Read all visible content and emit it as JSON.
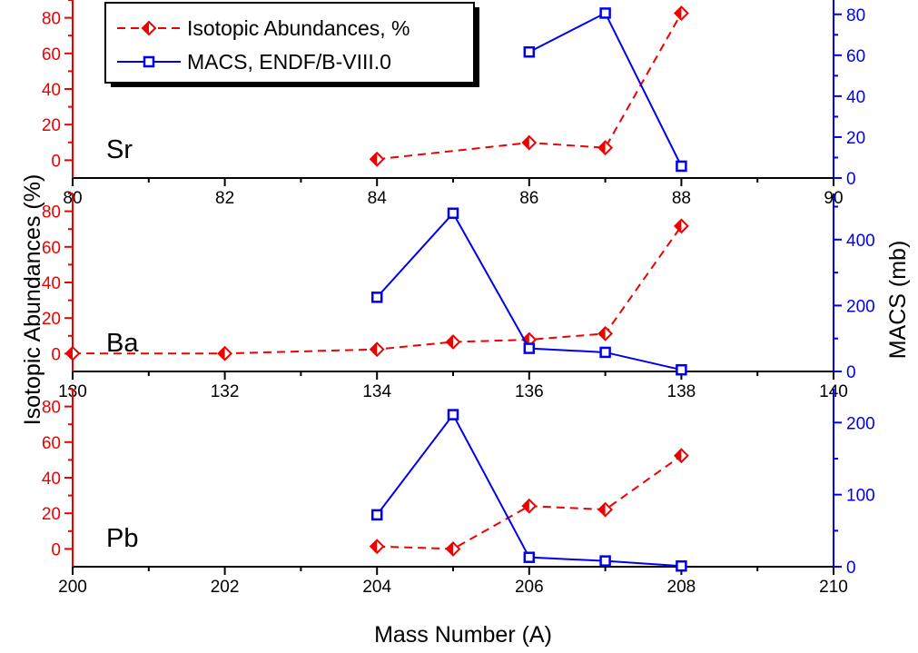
{
  "chart_data": {
    "type": "line",
    "ylabel_left": "Isotopic Abundances  (%)",
    "ylabel_right": "MACS (mb)",
    "xlabel": "Mass Number (A)",
    "legend": {
      "placement": "top-left",
      "entries": [
        "Isotopic Abundances, %",
        "MACS, ENDF/B-VIII.0"
      ]
    },
    "colors": {
      "abundance": "#ee0000",
      "macs": "#0000ee",
      "frame": "#000000"
    },
    "panels": [
      {
        "element": "Sr",
        "xlim": [
          80,
          90
        ],
        "x_ticks": [
          "80",
          "82",
          "84",
          "86",
          "88",
          "90"
        ],
        "ylim_left": [
          -10,
          90
        ],
        "y_ticks_left": [
          "0",
          "20",
          "40",
          "60",
          "80"
        ],
        "ylim_right": [
          0,
          87
        ],
        "y_ticks_right": [
          "0",
          "20",
          "40",
          "60",
          "80"
        ],
        "series": [
          {
            "name": "Isotopic Abundances, %",
            "x": [
              84,
              86,
              87,
              88
            ],
            "y": [
              0.56,
              9.86,
              7.0,
              82.58
            ]
          },
          {
            "name": "MACS, ENDF/B-VIII.0",
            "x": [
              86,
              87,
              88
            ],
            "y": [
              61.6,
              80.6,
              5.8
            ]
          }
        ]
      },
      {
        "element": "Ba",
        "xlim": [
          130,
          140
        ],
        "x_ticks": [
          "130",
          "132",
          "134",
          "136",
          "138",
          "140"
        ],
        "ylim_left": [
          -10,
          90
        ],
        "y_ticks_left": [
          "0",
          "20",
          "40",
          "60",
          "80"
        ],
        "ylim_right": [
          0,
          540
        ],
        "y_ticks_right": [
          "0",
          "200",
          "400"
        ],
        "series": [
          {
            "name": "Isotopic Abundances, %",
            "x": [
              130,
              132,
              134,
              135,
              136,
              137,
              138
            ],
            "y": [
              0.11,
              0.1,
              2.42,
              6.59,
              7.85,
              11.23,
              71.7
            ]
          },
          {
            "name": "MACS, ENDF/B-VIII.0",
            "x": [
              134,
              135,
              136,
              137,
              138
            ],
            "y": [
              225,
              480,
              70,
              58,
              5
            ]
          }
        ]
      },
      {
        "element": "Pb",
        "xlim": [
          200,
          210
        ],
        "x_ticks": [
          "200",
          "202",
          "204",
          "206",
          "208",
          "210"
        ],
        "ylim_left": [
          -10,
          90
        ],
        "y_ticks_left": [
          "0",
          "20",
          "40",
          "60",
          "80"
        ],
        "ylim_right": [
          0,
          247
        ],
        "y_ticks_right": [
          "0",
          "100",
          "200"
        ],
        "series": [
          {
            "name": "Isotopic Abundances, %",
            "x": [
              204,
              205,
              206,
              207,
              208
            ],
            "y": [
              1.4,
              0,
              24.1,
              22.1,
              52.4
            ]
          },
          {
            "name": "MACS, ENDF/B-VIII.0",
            "x": [
              204,
              205,
              206,
              207,
              208
            ],
            "y": [
              72,
              211,
              13,
              8,
              1
            ]
          }
        ]
      }
    ]
  }
}
